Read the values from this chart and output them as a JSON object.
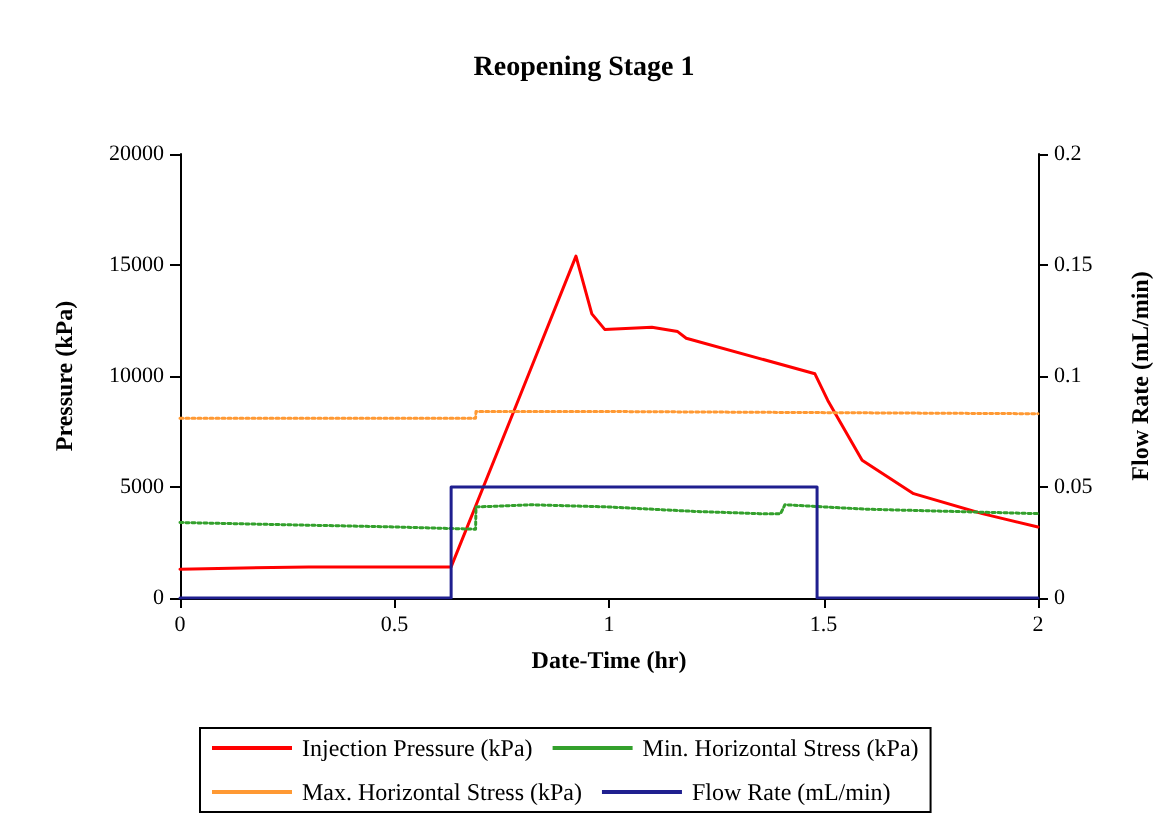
{
  "chart_data": {
    "type": "line",
    "title": "Reopening Stage 1",
    "xlabel": "Date-Time (hr)",
    "ylabel": "Pressure (kPa)",
    "y2label": "Flow Rate (mL/min)",
    "xlim": [
      0,
      2
    ],
    "xticks": [
      0,
      0.5,
      1,
      1.5,
      2
    ],
    "ylim": [
      0,
      20000
    ],
    "yticks": [
      0,
      5000,
      10000,
      15000,
      20000
    ],
    "y2lim": [
      0,
      0.2
    ],
    "y2ticks": [
      0,
      0.05,
      0.1,
      0.15,
      0.2
    ],
    "grid": false,
    "legend": "bottom",
    "marker": "none",
    "series": [
      {
        "name": "Injection Pressure (kPa)",
        "color": "#ff0000",
        "line_style": "solid",
        "x": [
          0,
          0.3,
          0.632,
          0.78,
          0.923,
          0.96,
          0.99,
          1.1,
          1.16,
          1.18,
          1.48,
          1.51,
          1.59,
          1.71,
          1.87,
          2.0
        ],
        "values": [
          1300,
          1400,
          1400,
          8500,
          15400,
          12800,
          12100,
          12200,
          12000,
          11700,
          10100,
          8900,
          6200,
          4700,
          3800,
          3200
        ]
      },
      {
        "name": "Min. Horizontal Stress (kPa)",
        "color": "#33a02c",
        "line_style": "dotted",
        "x": [
          0,
          0.5,
          0.689,
          0.69,
          0.82,
          1.0,
          1.2,
          1.35,
          1.4,
          1.41,
          1.6,
          2.0
        ],
        "values": [
          3400,
          3200,
          3100,
          4100,
          4200,
          4100,
          3900,
          3800,
          3800,
          4200,
          4000,
          3800
        ]
      },
      {
        "name": "Max. Horizontal Stress (kPa)",
        "color": "#ff9933",
        "line_style": "dotted",
        "x": [
          0,
          0.689,
          0.69,
          1.0,
          2.0
        ],
        "values": [
          8100,
          8100,
          8400,
          8400,
          8300
        ]
      },
      {
        "name": "Flow Rate (mL/min)",
        "color": "#1f1f8f",
        "line_style": "solid",
        "axis": "y2",
        "x": [
          0,
          0.632,
          0.632,
          1.485,
          1.485,
          2.0
        ],
        "values": [
          0,
          0,
          0.05,
          0.05,
          0,
          0
        ]
      }
    ]
  }
}
